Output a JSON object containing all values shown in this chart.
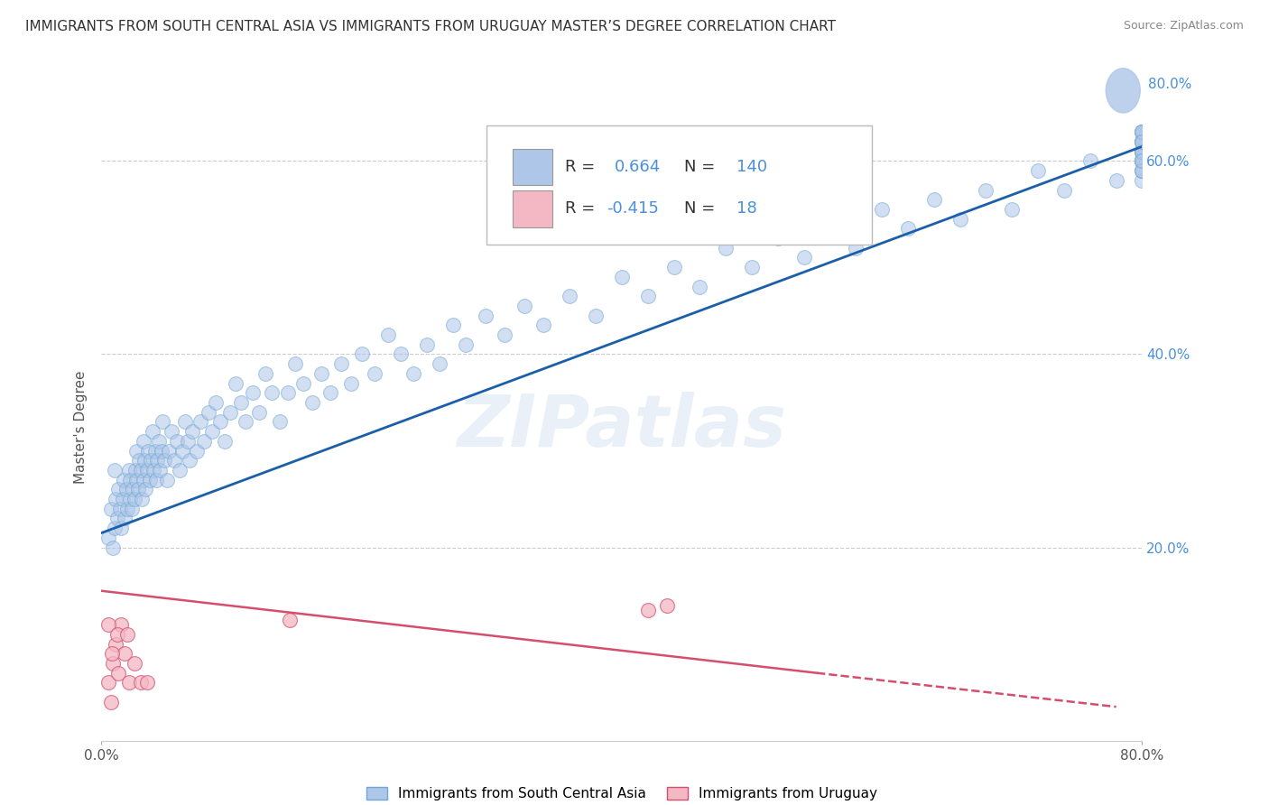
{
  "title": "IMMIGRANTS FROM SOUTH CENTRAL ASIA VS IMMIGRANTS FROM URUGUAY MASTER’S DEGREE CORRELATION CHART",
  "source": "Source: ZipAtlas.com",
  "ylabel": "Master's Degree",
  "xlim": [
    0.0,
    0.8
  ],
  "ylim": [
    0.0,
    0.65
  ],
  "ytick_positions": [
    0.2,
    0.4,
    0.6
  ],
  "ytick_labels": [
    "20.0%",
    "40.0%",
    "60.0%"
  ],
  "right_ytick_positions": [
    0.2,
    0.4,
    0.6
  ],
  "right_ytick_labels": [
    "20.0%",
    "40.0%",
    "60.0%"
  ],
  "top_right_label": "80.0%",
  "watermark": "ZIPatlas",
  "legend_color1": "#aec6e8",
  "legend_color2": "#f4b8c4",
  "blue_line": {
    "x0": 0.0,
    "y0": 0.215,
    "x1": 0.8,
    "y1": 0.615
  },
  "pink_line_solid": {
    "x0": 0.0,
    "y0": 0.155,
    "x1": 0.55,
    "y1": 0.07
  },
  "pink_line_dashed": {
    "x0": 0.55,
    "y0": 0.07,
    "x1": 0.78,
    "y1": 0.035
  },
  "blue_line_color": "#1a5fa8",
  "pink_line_color": "#d44f6e",
  "blue_dot_color": "#aec6e8",
  "blue_dot_edge_color": "#6fa8d4",
  "pink_dot_color": "#f4b8c4",
  "pink_dot_edge_color": "#d44f6e",
  "background_color": "#ffffff",
  "grid_color": "#cccccc",
  "title_fontsize": 11,
  "axis_label_fontsize": 11,
  "tick_fontsize": 11,
  "dot_size": 130,
  "blue_dot_alpha": 0.55,
  "pink_dot_alpha": 0.75,
  "blue_scatter_x": [
    0.005,
    0.007,
    0.009,
    0.01,
    0.01,
    0.011,
    0.012,
    0.013,
    0.014,
    0.015,
    0.016,
    0.017,
    0.018,
    0.019,
    0.02,
    0.021,
    0.022,
    0.022,
    0.023,
    0.024,
    0.025,
    0.026,
    0.027,
    0.027,
    0.028,
    0.029,
    0.03,
    0.031,
    0.032,
    0.032,
    0.033,
    0.034,
    0.035,
    0.036,
    0.037,
    0.038,
    0.039,
    0.04,
    0.041,
    0.042,
    0.043,
    0.044,
    0.045,
    0.046,
    0.047,
    0.048,
    0.05,
    0.052,
    0.054,
    0.056,
    0.058,
    0.06,
    0.062,
    0.064,
    0.066,
    0.068,
    0.07,
    0.073,
    0.076,
    0.079,
    0.082,
    0.085,
    0.088,
    0.091,
    0.095,
    0.099,
    0.103,
    0.107,
    0.111,
    0.116,
    0.121,
    0.126,
    0.131,
    0.137,
    0.143,
    0.149,
    0.155,
    0.162,
    0.169,
    0.176,
    0.184,
    0.192,
    0.2,
    0.21,
    0.22,
    0.23,
    0.24,
    0.25,
    0.26,
    0.27,
    0.28,
    0.295,
    0.31,
    0.325,
    0.34,
    0.36,
    0.38,
    0.4,
    0.42,
    0.44,
    0.46,
    0.48,
    0.5,
    0.52,
    0.54,
    0.56,
    0.58,
    0.6,
    0.62,
    0.64,
    0.66,
    0.68,
    0.7,
    0.72,
    0.74,
    0.76,
    0.78,
    0.8,
    0.8,
    0.8,
    0.8,
    0.8,
    0.8,
    0.8,
    0.8,
    0.8,
    0.8,
    0.8,
    0.8,
    0.8,
    0.8,
    0.8,
    0.8,
    0.8,
    0.8,
    0.8,
    0.8,
    0.8,
    0.8,
    0.8
  ],
  "blue_scatter_y": [
    0.21,
    0.24,
    0.2,
    0.22,
    0.28,
    0.25,
    0.23,
    0.26,
    0.24,
    0.22,
    0.25,
    0.27,
    0.23,
    0.26,
    0.24,
    0.28,
    0.25,
    0.27,
    0.24,
    0.26,
    0.25,
    0.28,
    0.27,
    0.3,
    0.26,
    0.29,
    0.28,
    0.25,
    0.27,
    0.31,
    0.29,
    0.26,
    0.28,
    0.3,
    0.27,
    0.29,
    0.32,
    0.28,
    0.3,
    0.27,
    0.29,
    0.31,
    0.28,
    0.3,
    0.33,
    0.29,
    0.27,
    0.3,
    0.32,
    0.29,
    0.31,
    0.28,
    0.3,
    0.33,
    0.31,
    0.29,
    0.32,
    0.3,
    0.33,
    0.31,
    0.34,
    0.32,
    0.35,
    0.33,
    0.31,
    0.34,
    0.37,
    0.35,
    0.33,
    0.36,
    0.34,
    0.38,
    0.36,
    0.33,
    0.36,
    0.39,
    0.37,
    0.35,
    0.38,
    0.36,
    0.39,
    0.37,
    0.4,
    0.38,
    0.42,
    0.4,
    0.38,
    0.41,
    0.39,
    0.43,
    0.41,
    0.44,
    0.42,
    0.45,
    0.43,
    0.46,
    0.44,
    0.48,
    0.46,
    0.49,
    0.47,
    0.51,
    0.49,
    0.52,
    0.5,
    0.53,
    0.51,
    0.55,
    0.53,
    0.56,
    0.54,
    0.57,
    0.55,
    0.59,
    0.57,
    0.6,
    0.58,
    0.61,
    0.62,
    0.6,
    0.63,
    0.58,
    0.61,
    0.6,
    0.62,
    0.59,
    0.63,
    0.61,
    0.6,
    0.62,
    0.59,
    0.63,
    0.61,
    0.6,
    0.62,
    0.59,
    0.63,
    0.61,
    0.6,
    0.62
  ],
  "pink_scatter_x": [
    0.005,
    0.007,
    0.009,
    0.011,
    0.013,
    0.015,
    0.018,
    0.021,
    0.025,
    0.03,
    0.035,
    0.005,
    0.008,
    0.012,
    0.02,
    0.145,
    0.42,
    0.435
  ],
  "pink_scatter_y": [
    0.06,
    0.04,
    0.08,
    0.1,
    0.07,
    0.12,
    0.09,
    0.06,
    0.08,
    0.06,
    0.06,
    0.12,
    0.09,
    0.11,
    0.11,
    0.125,
    0.135,
    0.14
  ]
}
